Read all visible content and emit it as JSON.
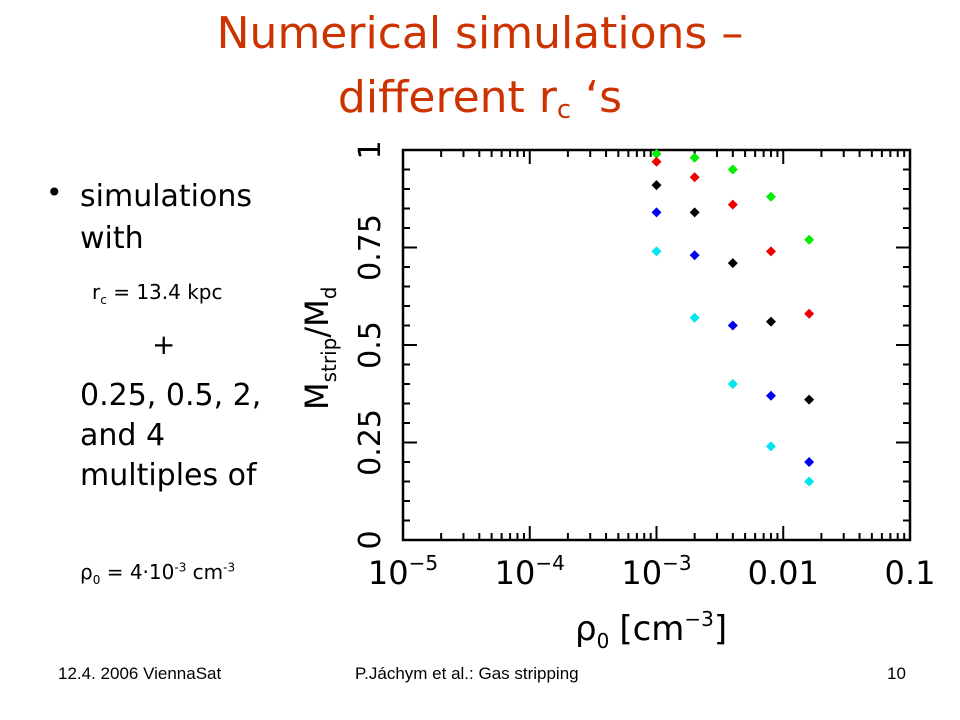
{
  "slide": {
    "title_line1": "Numerical simulations –",
    "title_line2_main": "different r",
    "title_line2_sub": "c",
    "title_line2_end": " ‘s",
    "bullet": "•",
    "bullet_text": "simulations with",
    "rc_main": "r",
    "rc_sub": "c",
    "rc_value": " = 13.4 kpc",
    "plus": "+",
    "multiples_text": "0.25, 0.5, 2, and 4 multiples of",
    "rho0_main": "ρ",
    "rho0_sub": "0",
    "rho0_mid": " = 4·10",
    "rho0_exp1": "-3",
    "rho0_unit": " cm",
    "rho0_exp2": "-3"
  },
  "footer": {
    "left": "12.4. 2006 ViennaSat",
    "center": "P.Jáchym et al.: Gas stripping",
    "right": "10"
  },
  "chart_data": {
    "type": "scatter",
    "xscale": "log",
    "xlim": [
      1e-05,
      0.1
    ],
    "ylim": [
      0,
      1
    ],
    "grid": false,
    "legend": "none",
    "xlabel_main": "ρ",
    "xlabel_sub": "0",
    "xlabel_unit": "[cm",
    "xlabel_exp": "−3",
    "xlabel_close": "]",
    "ylabel_main": "M",
    "ylabel_sub1": "strip",
    "ylabel_slash": "/M",
    "ylabel_sub2": "d",
    "x_ticks": [
      {
        "value": 1e-05,
        "base": "10",
        "exp": "−5"
      },
      {
        "value": 0.0001,
        "base": "10",
        "exp": "−4"
      },
      {
        "value": 0.001,
        "base": "10",
        "exp": "−3"
      },
      {
        "value": 0.01,
        "base": "0.01",
        "exp": ""
      },
      {
        "value": 0.1,
        "base": "0.1",
        "exp": ""
      }
    ],
    "y_ticks": [
      {
        "value": 0,
        "label": "0"
      },
      {
        "value": 0.25,
        "label": "0.25"
      },
      {
        "value": 0.5,
        "label": "0.5"
      },
      {
        "value": 0.75,
        "label": "0.75"
      },
      {
        "value": 1,
        "label": "1"
      }
    ],
    "series": [
      {
        "color": "#00ee00",
        "points": [
          [
            0.001,
            0.99
          ],
          [
            0.002,
            0.98
          ],
          [
            0.004,
            0.95
          ],
          [
            0.008,
            0.88
          ],
          [
            0.016,
            0.77
          ]
        ]
      },
      {
        "color": "#ee0000",
        "points": [
          [
            0.001,
            0.97
          ],
          [
            0.002,
            0.93
          ],
          [
            0.004,
            0.86
          ],
          [
            0.008,
            0.74
          ],
          [
            0.016,
            0.58
          ]
        ]
      },
      {
        "color": "#000000",
        "points": [
          [
            0.001,
            0.91
          ],
          [
            0.002,
            0.84
          ],
          [
            0.004,
            0.71
          ],
          [
            0.008,
            0.56
          ],
          [
            0.016,
            0.36
          ]
        ]
      },
      {
        "color": "#0000ee",
        "points": [
          [
            0.001,
            0.84
          ],
          [
            0.002,
            0.73
          ],
          [
            0.004,
            0.55
          ],
          [
            0.008,
            0.37
          ],
          [
            0.016,
            0.2
          ]
        ]
      },
      {
        "color": "#00e5ee",
        "points": [
          [
            0.001,
            0.74
          ],
          [
            0.002,
            0.57
          ],
          [
            0.004,
            0.4
          ],
          [
            0.008,
            0.24
          ],
          [
            0.016,
            0.15
          ]
        ]
      }
    ]
  }
}
